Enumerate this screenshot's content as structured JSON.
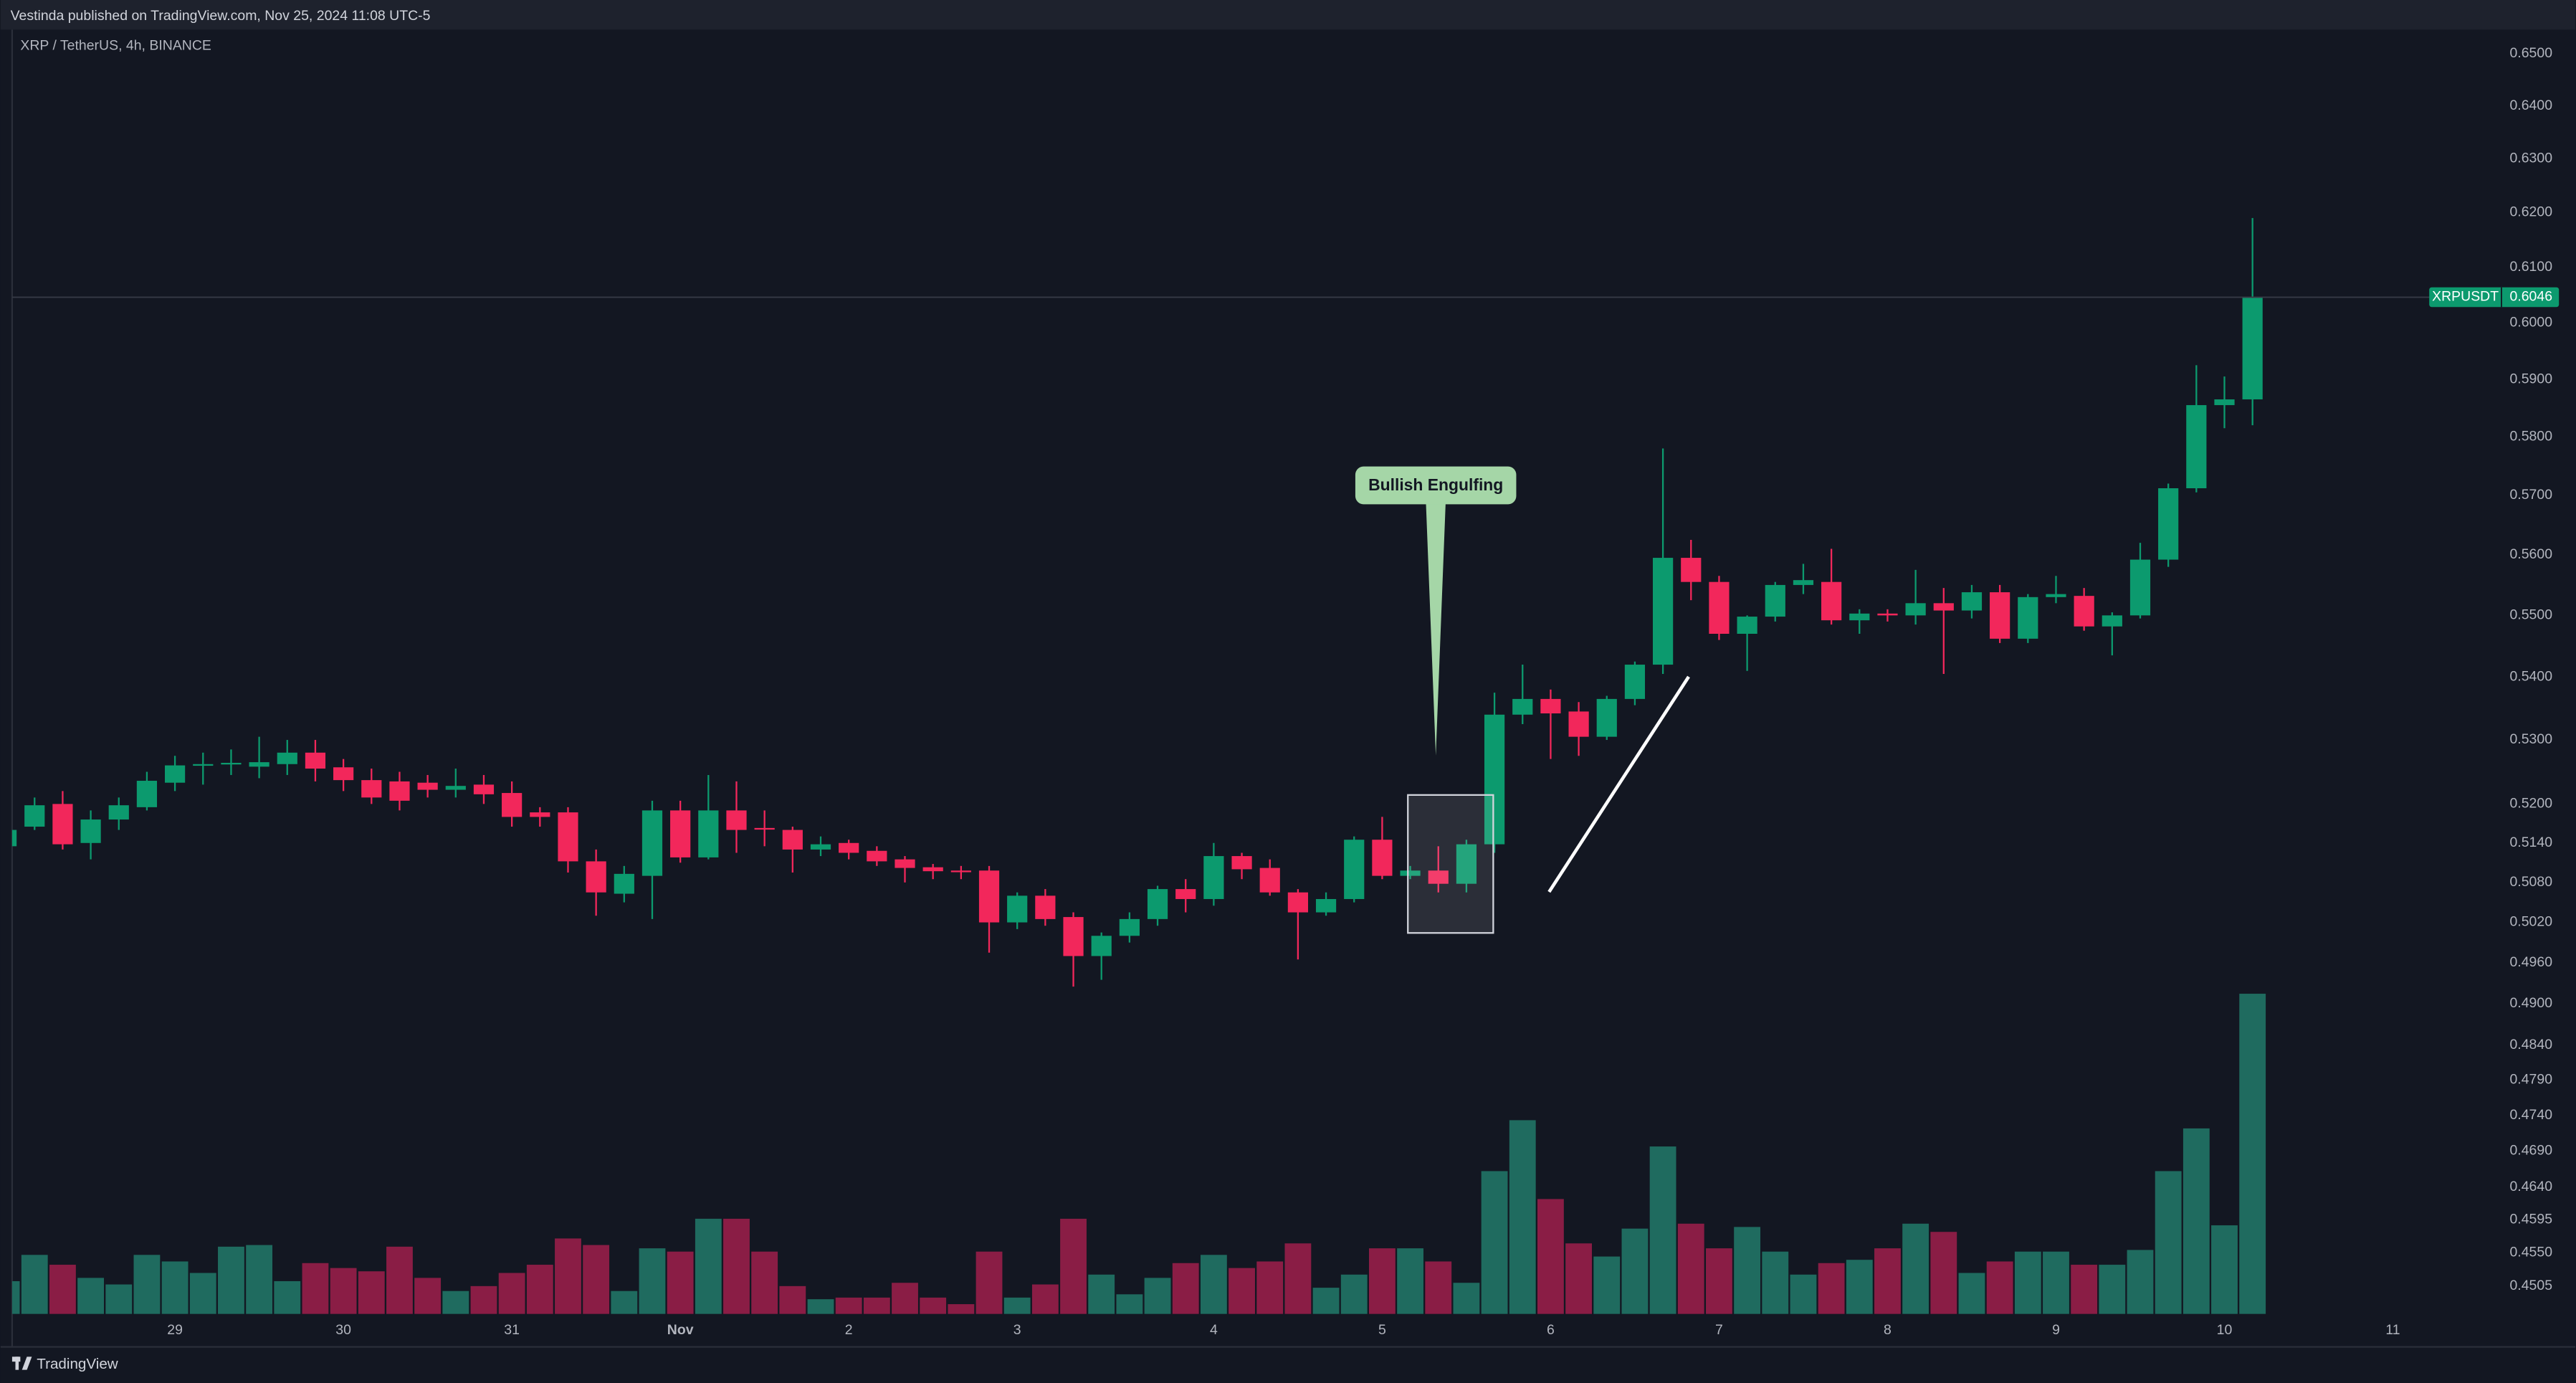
{
  "header": "Vestinda published on TradingView.com, Nov 25, 2024 11:08 UTC-5",
  "footer_logo": "TradingView",
  "chart_data": {
    "type": "candlestick",
    "title": "XRP / TetherUS, 4h, BINANCE",
    "symbol": "XRPUSDT",
    "last_price": 0.6046,
    "annotation": "Bullish Engulfing",
    "log_scale": true,
    "grid": false,
    "up_color": "#0c9a6e",
    "down_color": "#f2275b",
    "volume_up_color": "#1f6b5f",
    "volume_down_color": "#8a1d45",
    "categories": [
      null,
      null,
      null,
      null,
      null,
      null,
      "29",
      null,
      null,
      null,
      null,
      null,
      "30",
      null,
      null,
      null,
      null,
      null,
      "31",
      null,
      null,
      null,
      null,
      null,
      "Nov",
      null,
      null,
      null,
      null,
      null,
      "2",
      null,
      null,
      null,
      null,
      null,
      "3",
      null,
      null,
      null,
      null,
      null,
      null,
      "4",
      null,
      null,
      null,
      null,
      null,
      "5",
      null,
      null,
      null,
      null,
      null,
      "6",
      null,
      null,
      null,
      null,
      null,
      "7",
      null,
      null,
      null,
      null,
      null,
      "8",
      null,
      null,
      null,
      null,
      null,
      "9",
      null,
      null,
      null,
      null,
      null,
      "10",
      null,
      null,
      null,
      null,
      null,
      "11"
    ],
    "open": [
      0.5135,
      0.5165,
      0.52,
      0.514,
      0.5176,
      0.5195,
      0.5233,
      0.526,
      0.5262,
      0.5258,
      0.5262,
      0.528,
      0.5257,
      0.5237,
      0.5235,
      0.5233,
      0.5222,
      0.523,
      0.5217,
      0.5187,
      0.5187,
      0.5112,
      0.5063,
      0.509,
      0.519,
      0.5118,
      0.519,
      0.5163,
      0.516,
      0.513,
      0.514,
      0.5128,
      0.5115,
      0.5103,
      0.5098,
      0.5098,
      0.502,
      0.506,
      0.5028,
      0.497,
      0.5,
      0.5025,
      0.507,
      0.5055,
      0.512,
      0.5102,
      0.5065,
      0.5035,
      0.5055,
      0.5145,
      0.509,
      0.5098,
      0.5078,
      0.5138,
      0.534,
      0.5365,
      0.5345,
      0.5305,
      0.5365,
      0.542,
      0.5595,
      0.5555,
      0.547,
      0.5498,
      0.555,
      0.5555,
      0.5492,
      0.5503,
      0.55,
      0.552,
      0.5508,
      0.5538,
      0.5462,
      0.553,
      0.5532,
      0.5482,
      0.55,
      0.5592,
      0.5712,
      0.5855,
      0.5865,
      null,
      null,
      null,
      null,
      null
    ],
    "high": [
      0.517,
      0.521,
      0.522,
      0.519,
      0.521,
      0.525,
      0.5275,
      0.528,
      0.5285,
      0.5305,
      0.53,
      0.53,
      0.527,
      0.5255,
      0.525,
      0.5245,
      0.5255,
      0.5245,
      0.5235,
      0.5195,
      0.5195,
      0.513,
      0.5105,
      0.5205,
      0.5205,
      0.5245,
      0.5235,
      0.519,
      0.5165,
      0.515,
      0.5145,
      0.5135,
      0.512,
      0.5108,
      0.5105,
      0.5105,
      0.5065,
      0.507,
      0.5035,
      0.5005,
      0.5035,
      0.5075,
      0.5085,
      0.514,
      0.5125,
      0.5115,
      0.507,
      0.5065,
      0.515,
      0.518,
      0.5105,
      0.5135,
      0.5145,
      0.5375,
      0.542,
      0.538,
      0.536,
      0.537,
      0.5425,
      0.578,
      0.5625,
      0.5565,
      0.55,
      0.5555,
      0.5585,
      0.561,
      0.551,
      0.551,
      0.5575,
      0.5545,
      0.555,
      0.555,
      0.5535,
      0.5565,
      0.5545,
      0.5505,
      0.562,
      0.572,
      0.5925,
      0.5905,
      0.619,
      null,
      null,
      null,
      null,
      null
    ],
    "low": [
      0.512,
      0.516,
      0.513,
      0.5115,
      0.516,
      0.519,
      0.522,
      0.523,
      0.5245,
      0.524,
      0.5245,
      0.5235,
      0.522,
      0.52,
      0.519,
      0.521,
      0.521,
      0.52,
      0.5165,
      0.5165,
      0.5095,
      0.503,
      0.505,
      0.5025,
      0.511,
      0.5115,
      0.5125,
      0.5135,
      0.5095,
      0.512,
      0.5115,
      0.5105,
      0.508,
      0.5085,
      0.5085,
      0.4975,
      0.501,
      0.5015,
      0.4925,
      0.4935,
      0.499,
      0.5015,
      0.5035,
      0.5045,
      0.5085,
      0.506,
      0.4965,
      0.503,
      0.505,
      0.5085,
      0.5085,
      0.5065,
      0.5065,
      0.5125,
      0.5325,
      0.527,
      0.5275,
      0.53,
      0.5355,
      0.5405,
      0.5525,
      0.546,
      0.541,
      0.549,
      0.5535,
      0.5485,
      0.547,
      0.549,
      0.5485,
      0.5405,
      0.5495,
      0.5455,
      0.5455,
      0.552,
      0.5475,
      0.5435,
      0.5495,
      0.558,
      0.5705,
      0.5815,
      0.582,
      null,
      null,
      null,
      null,
      null
    ],
    "close": [
      0.516,
      0.5198,
      0.5138,
      0.5176,
      0.5198,
      0.5236,
      0.526,
      0.5262,
      0.5264,
      0.5265,
      0.528,
      0.5255,
      0.5237,
      0.521,
      0.5205,
      0.5222,
      0.5228,
      0.5215,
      0.518,
      0.518,
      0.5112,
      0.5065,
      0.5093,
      0.519,
      0.5118,
      0.519,
      0.516,
      0.5162,
      0.513,
      0.5138,
      0.5125,
      0.5112,
      0.5102,
      0.5097,
      0.5096,
      0.502,
      0.506,
      0.5025,
      0.497,
      0.5,
      0.5025,
      0.507,
      0.5055,
      0.512,
      0.51,
      0.5065,
      0.5035,
      0.5055,
      0.5145,
      0.509,
      0.5098,
      0.5078,
      0.5138,
      0.534,
      0.5365,
      0.5342,
      0.5305,
      0.5365,
      0.542,
      0.5595,
      0.5555,
      0.547,
      0.5498,
      0.555,
      0.5558,
      0.5492,
      0.5503,
      0.55,
      0.552,
      0.5508,
      0.5538,
      0.5462,
      0.553,
      0.5535,
      0.5482,
      0.55,
      0.5592,
      0.5712,
      0.5855,
      0.5865,
      0.6046,
      null,
      null,
      null,
      null,
      null
    ],
    "volume": [
      20,
      36,
      30,
      22,
      18,
      36,
      32,
      25,
      41,
      42,
      20,
      31,
      28,
      26,
      41,
      22,
      14,
      17,
      25,
      30,
      46,
      42,
      14,
      40,
      38,
      58,
      58,
      38,
      17,
      9,
      10,
      10,
      19,
      10,
      6,
      38,
      10,
      18,
      58,
      24,
      12,
      22,
      31,
      36,
      28,
      32,
      43,
      16,
      24,
      40,
      40,
      32,
      19,
      87,
      118,
      70,
      43,
      35,
      52,
      102,
      55,
      40,
      53,
      38,
      24,
      31,
      33,
      40,
      55,
      50,
      25,
      32,
      38,
      38,
      30,
      30,
      39,
      87,
      113,
      54,
      195,
      null,
      null,
      null,
      null,
      null
    ],
    "volume_lim": [
      0,
      200
    ],
    "xlim": [
      0.2,
      88.4
    ],
    "ylim": [
      0.4468,
      0.6547
    ],
    "yticks": [
      {
        "value": 0.65,
        "label": "0.6500"
      },
      {
        "value": 0.64,
        "label": "0.6400"
      },
      {
        "value": 0.63,
        "label": "0.6300"
      },
      {
        "value": 0.62,
        "label": "0.6200"
      },
      {
        "value": 0.61,
        "label": "0.6100"
      },
      {
        "value": 0.6,
        "label": "0.6000"
      },
      {
        "value": 0.59,
        "label": "0.5900"
      },
      {
        "value": 0.58,
        "label": "0.5800"
      },
      {
        "value": 0.57,
        "label": "0.5700"
      },
      {
        "value": 0.56,
        "label": "0.5600"
      },
      {
        "value": 0.55,
        "label": "0.5500"
      },
      {
        "value": 0.54,
        "label": "0.5400"
      },
      {
        "value": 0.53,
        "label": "0.5300"
      },
      {
        "value": 0.52,
        "label": "0.5200"
      },
      {
        "value": 0.514,
        "label": "0.5140"
      },
      {
        "value": 0.508,
        "label": "0.5080"
      },
      {
        "value": 0.502,
        "label": "0.5020"
      },
      {
        "value": 0.496,
        "label": "0.4960"
      },
      {
        "value": 0.49,
        "label": "0.4900"
      },
      {
        "value": 0.484,
        "label": "0.4840"
      },
      {
        "value": 0.479,
        "label": "0.4790"
      },
      {
        "value": 0.474,
        "label": "0.4740"
      },
      {
        "value": 0.469,
        "label": "0.4690"
      },
      {
        "value": 0.464,
        "label": "0.4640"
      },
      {
        "value": 0.4595,
        "label": "0.4595"
      },
      {
        "value": 0.455,
        "label": "0.4550"
      },
      {
        "value": 0.4505,
        "label": "0.4505"
      }
    ]
  }
}
